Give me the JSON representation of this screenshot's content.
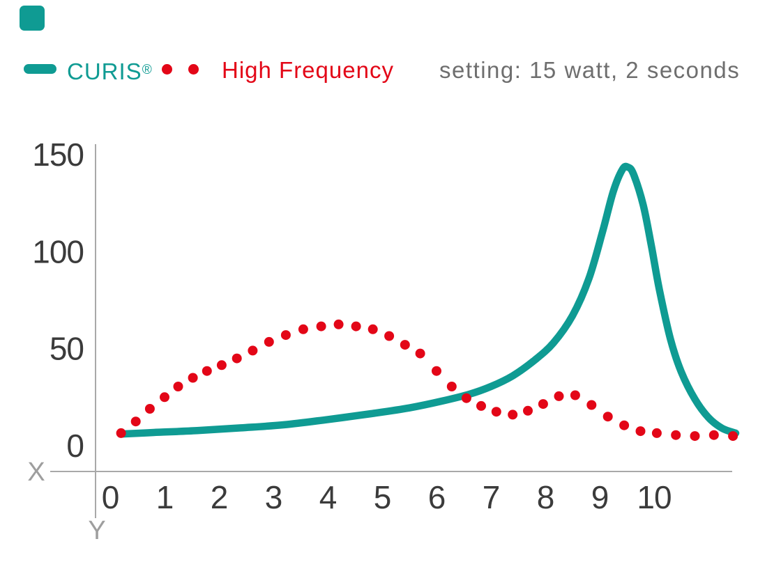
{
  "page": {
    "background": "#ffffff"
  },
  "brand_mark": {
    "color": "#0f9b93"
  },
  "legend": {
    "series1_name": "CURIS",
    "series1_mark": "®",
    "series2_name": "High Frequency",
    "setting": "setting: 15 watt, 2 seconds",
    "setting_color": "#6e6e6e"
  },
  "chart_data": {
    "type": "line",
    "title": "",
    "x_axis_letter": "X",
    "y_axis_letter": "Y",
    "x_ticks": [
      0,
      1,
      2,
      3,
      4,
      5,
      6,
      7,
      8,
      9,
      10
    ],
    "y_ticks": [
      0,
      50,
      100,
      150
    ],
    "xlim": [
      0,
      11.6
    ],
    "ylim": [
      0,
      150
    ],
    "grid": false,
    "legend_position": "top",
    "annotation": "setting: 15 watt, 2 seconds",
    "series": [
      {
        "name": "CURIS®",
        "style": "solid-line",
        "color": "#0f9b93",
        "points": [
          [
            0.2,
            6
          ],
          [
            0.8,
            6.8
          ],
          [
            1.6,
            7.8
          ],
          [
            2.4,
            9.2
          ],
          [
            3.2,
            10.8
          ],
          [
            4,
            13.5
          ],
          [
            4.8,
            16.5
          ],
          [
            5.5,
            19.5
          ],
          [
            6.1,
            23
          ],
          [
            6.6,
            26.5
          ],
          [
            7,
            30.5
          ],
          [
            7.4,
            36
          ],
          [
            7.8,
            44
          ],
          [
            8.15,
            53
          ],
          [
            8.5,
            67
          ],
          [
            8.8,
            86
          ],
          [
            9.05,
            110
          ],
          [
            9.25,
            131
          ],
          [
            9.42,
            142.5
          ],
          [
            9.52,
            143.5
          ],
          [
            9.62,
            140
          ],
          [
            9.8,
            124
          ],
          [
            9.95,
            103
          ],
          [
            10.1,
            80
          ],
          [
            10.3,
            55
          ],
          [
            10.5,
            38
          ],
          [
            10.75,
            24
          ],
          [
            11,
            14.5
          ],
          [
            11.25,
            9
          ],
          [
            11.5,
            6.5
          ]
        ]
      },
      {
        "name": "High Frequency",
        "style": "dotted",
        "color": "#e30617",
        "points": [
          [
            0.2,
            6.5
          ],
          [
            0.47,
            12.5
          ],
          [
            0.73,
            19
          ],
          [
            1.0,
            25
          ],
          [
            1.25,
            30.5
          ],
          [
            1.52,
            35
          ],
          [
            1.78,
            38.5
          ],
          [
            2.05,
            41.5
          ],
          [
            2.33,
            45
          ],
          [
            2.62,
            49
          ],
          [
            2.92,
            53.5
          ],
          [
            3.23,
            57
          ],
          [
            3.55,
            60
          ],
          [
            3.88,
            61.5
          ],
          [
            4.2,
            62.5
          ],
          [
            4.52,
            61.5
          ],
          [
            4.83,
            60
          ],
          [
            5.13,
            56.5
          ],
          [
            5.42,
            52
          ],
          [
            5.7,
            47.5
          ],
          [
            6.0,
            38.5
          ],
          [
            6.28,
            30.5
          ],
          [
            6.55,
            24.5
          ],
          [
            6.82,
            20.5
          ],
          [
            7.1,
            17.5
          ],
          [
            7.4,
            16
          ],
          [
            7.68,
            18
          ],
          [
            7.96,
            21.5
          ],
          [
            8.25,
            25.5
          ],
          [
            8.55,
            26
          ],
          [
            8.85,
            21
          ],
          [
            9.15,
            15
          ],
          [
            9.45,
            10.5
          ],
          [
            9.75,
            7.5
          ],
          [
            10.05,
            6.5
          ],
          [
            10.4,
            5.5
          ],
          [
            10.75,
            5
          ],
          [
            11.1,
            5.5
          ],
          [
            11.45,
            5
          ]
        ]
      }
    ]
  }
}
